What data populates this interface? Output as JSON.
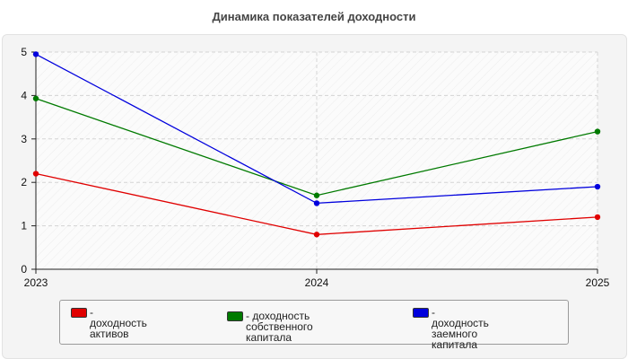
{
  "chart_data": {
    "type": "line",
    "title": "Динамика показателей доходности",
    "x": [
      "2023",
      "2024",
      "2025"
    ],
    "ylim": [
      0,
      5
    ],
    "yticks": [
      0,
      1,
      2,
      3,
      4,
      5
    ],
    "grid": true,
    "legend_position": "bottom",
    "series": [
      {
        "name": "- доходность активов",
        "color": "#e00000",
        "values": [
          2.2,
          0.8,
          1.2
        ]
      },
      {
        "name": "- доходность собственного\nкапитала",
        "color": "#007a00",
        "values": [
          3.93,
          1.7,
          3.17
        ]
      },
      {
        "name": "- доходность заемного\nкапитала",
        "color": "#0000dd",
        "values": [
          4.95,
          1.52,
          1.9
        ]
      }
    ]
  }
}
